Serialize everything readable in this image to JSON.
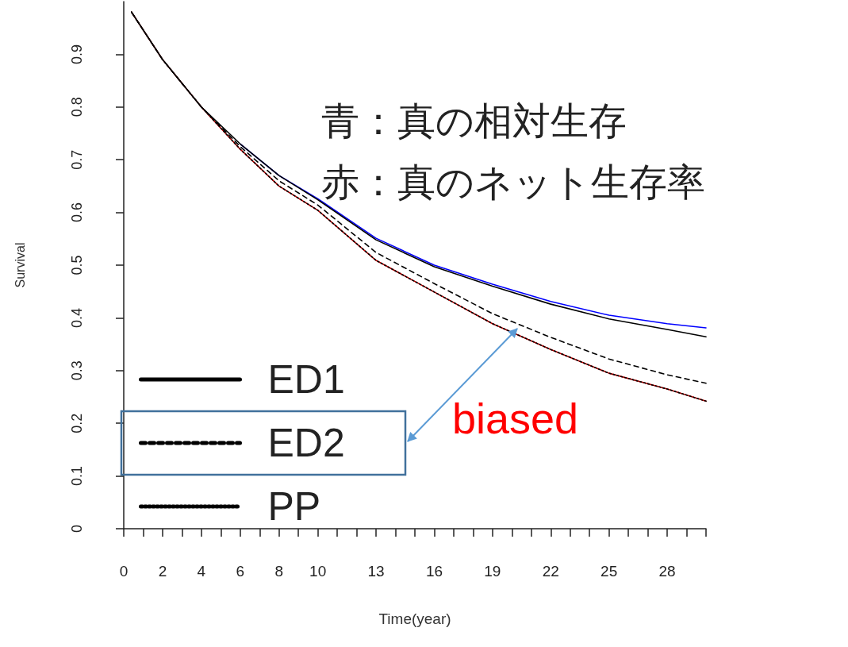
{
  "chart_data": {
    "type": "line",
    "xlabel": "Time(year)",
    "ylabel": "Survival",
    "xlim": [
      0,
      30
    ],
    "ylim": [
      0,
      1
    ],
    "xticks": [
      0,
      {
        "value": 1,
        "label": null
      },
      2,
      {
        "value": 3,
        "label": null
      },
      4,
      {
        "value": 5,
        "label": null
      },
      6,
      {
        "value": 7,
        "label": null
      },
      8,
      {
        "value": 9,
        "label": null
      },
      10,
      {
        "value": 11,
        "label": null
      },
      {
        "value": 12,
        "label": null
      },
      13,
      {
        "value": 14,
        "label": null
      },
      {
        "value": 15,
        "label": null
      },
      16,
      {
        "value": 17,
        "label": null
      },
      {
        "value": 18,
        "label": null
      },
      19,
      {
        "value": 20,
        "label": null
      },
      {
        "value": 21,
        "label": null
      },
      22,
      {
        "value": 23,
        "label": null
      },
      {
        "value": 24,
        "label": null
      },
      25,
      {
        "value": 26,
        "label": null
      },
      {
        "value": 27,
        "label": null
      },
      28,
      {
        "value": 29,
        "label": null
      },
      {
        "value": 30,
        "label": null
      }
    ],
    "yticks": [
      0,
      0.1,
      0.2,
      0.3,
      0.4,
      0.5,
      0.6,
      0.7,
      0.8,
      0.9
    ],
    "grid": false,
    "legend": "bottom left",
    "marker": "none",
    "x": [
      0.4,
      2,
      4,
      6,
      8,
      10,
      13,
      16,
      19,
      22,
      25,
      28,
      30
    ],
    "series": [
      {
        "color": "#0000ff",
        "line_style": "solid",
        "values": [
          null,
          null,
          null,
          0.73,
          0.67,
          0.626,
          0.551,
          0.5,
          0.464,
          0.431,
          0.405,
          0.389,
          0.381
        ]
      },
      {
        "color": "#cc0000",
        "line_style": "solid",
        "values": [
          0.98,
          0.89,
          0.8,
          0.72,
          0.65,
          0.604,
          0.509,
          0.449,
          0.389,
          0.34,
          0.295,
          0.265,
          0.242
        ]
      },
      {
        "name": "ED1",
        "color": "#000000",
        "line_style": "solid",
        "values": [
          0.98,
          0.89,
          0.8,
          0.73,
          0.67,
          0.624,
          0.548,
          0.497,
          0.46,
          0.426,
          0.398,
          0.378,
          0.364
        ]
      },
      {
        "name": "ED2",
        "color": "#000000",
        "line_style": "dashed",
        "values": [
          0.98,
          0.89,
          0.8,
          0.725,
          0.66,
          0.614,
          0.524,
          0.465,
          0.408,
          0.363,
          0.322,
          0.292,
          0.276
        ]
      },
      {
        "name": "PP",
        "color": "#000000",
        "line_style": "dotted",
        "values": [
          0.98,
          0.89,
          0.8,
          0.72,
          0.65,
          0.604,
          0.509,
          0.449,
          0.389,
          0.34,
          0.295,
          0.265,
          0.242
        ]
      }
    ],
    "annotations": [
      "青：真の相対生存",
      "赤：真のネット生存率",
      "biased"
    ]
  }
}
